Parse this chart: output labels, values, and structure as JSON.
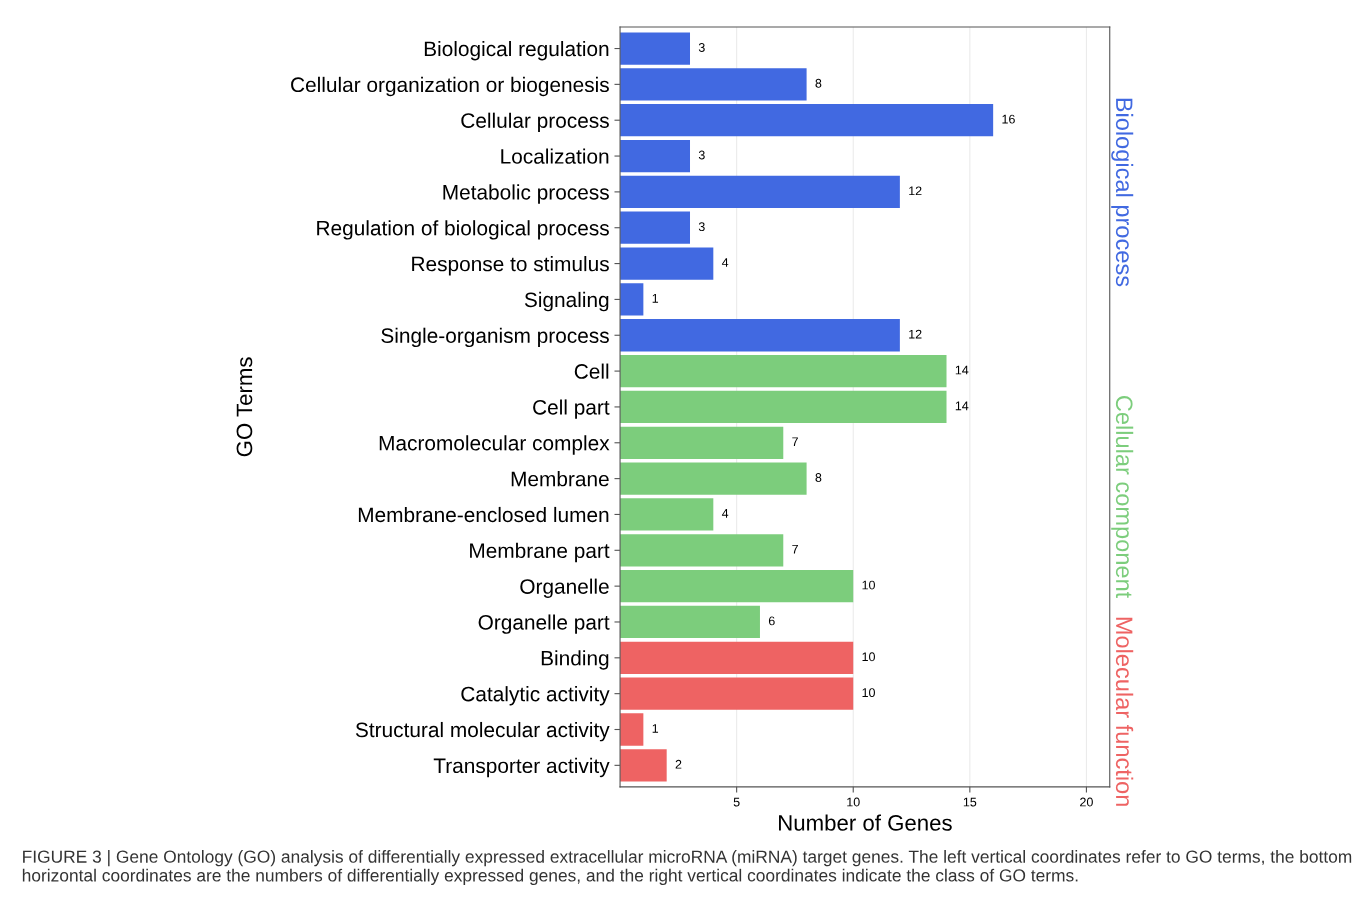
{
  "chart_data": {
    "type": "bar",
    "orientation": "horizontal",
    "categories": [
      "Biological regulation",
      "Cellular organization or biogenesis",
      "Cellular process",
      "Localization",
      "Metabolic process",
      "Regulation of biological process",
      "Response to stimulus",
      "Signaling",
      "Single-organism process",
      "Cell",
      "Cell part",
      "Macromolecular complex",
      "Membrane",
      "Membrane-enclosed lumen",
      "Membrane part",
      "Organelle",
      "Organelle part",
      "Binding",
      "Catalytic activity",
      "Structural molecular activity",
      "Transporter activity"
    ],
    "series": [
      {
        "name": "Biological process",
        "color": "#4169e1",
        "values": [
          3,
          8,
          16,
          3,
          12,
          3,
          4,
          1,
          12,
          null,
          null,
          null,
          null,
          null,
          null,
          null,
          null,
          null,
          null,
          null,
          null
        ]
      },
      {
        "name": "Cellular component",
        "color": "#7ccd7c",
        "values": [
          null,
          null,
          null,
          null,
          null,
          null,
          null,
          null,
          null,
          14,
          14,
          7,
          8,
          4,
          7,
          10,
          6,
          null,
          null,
          null,
          null
        ]
      },
      {
        "name": "Molecular function",
        "color": "#ee6363",
        "values": [
          null,
          null,
          null,
          null,
          null,
          null,
          null,
          null,
          null,
          null,
          null,
          null,
          null,
          null,
          null,
          null,
          null,
          10,
          10,
          1,
          2
        ]
      }
    ],
    "xlabel": "Number of Genes",
    "ylabel": "GO Terms",
    "xlim": [
      0,
      21
    ],
    "xticks": [
      5,
      10,
      15,
      20
    ],
    "data_labels": true,
    "grid": "x",
    "legend": false,
    "annotations": [
      "FIGURE 3 | Gene Ontology (GO) analysis of differentially expressed extracellular microRNA (miRNA) target genes. The left vertical coordinates refer to GO terms, the bottom horizontal coordinates are the numbers of differentially expressed genes, and the right vertical coordinates indicate the class of GO terms."
    ]
  }
}
